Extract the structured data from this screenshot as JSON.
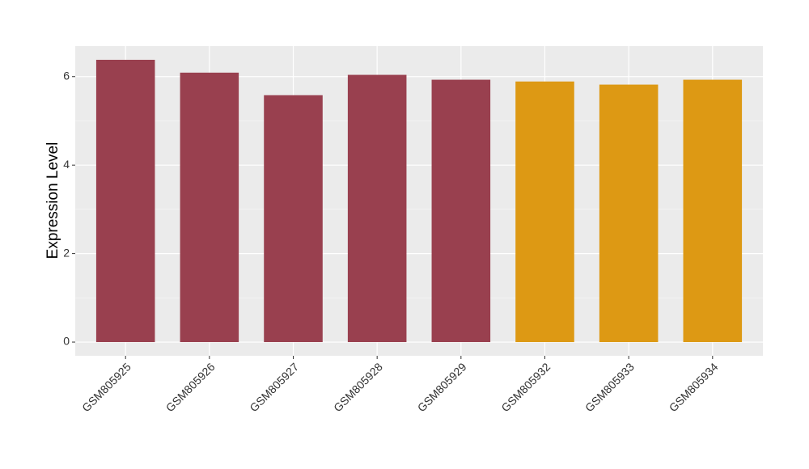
{
  "chart_data": {
    "type": "bar",
    "y_label": "Expression Level",
    "categories": [
      "GSM805925",
      "GSM805926",
      "GSM805927",
      "GSM805928",
      "GSM805929",
      "GSM805932",
      "GSM805933",
      "GSM805934"
    ],
    "values": [
      6.38,
      6.09,
      5.58,
      6.04,
      5.93,
      5.89,
      5.82,
      5.93
    ],
    "colors": [
      "#99404f",
      "#99404f",
      "#99404f",
      "#99404f",
      "#99404f",
      "#dd9914",
      "#dd9914",
      "#dd9914"
    ],
    "ylim": [
      -0.31,
      6.69
    ],
    "yticks": [
      0,
      2,
      4,
      6
    ],
    "yminor": [
      1,
      3,
      5
    ],
    "grid": true
  }
}
